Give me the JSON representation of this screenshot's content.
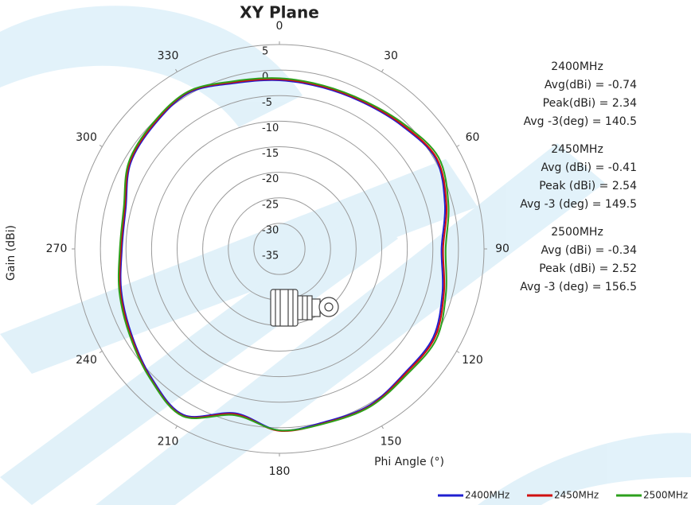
{
  "chart_data": {
    "type": "polar",
    "title": "XY Plane",
    "radial_label": "Gain (dBi)",
    "angle_label": "Phi Angle (°)",
    "theta_direction": "clockwise",
    "theta_zero": "top",
    "rlim": [
      -35,
      5
    ],
    "rticks": [
      5,
      0,
      -5,
      -10,
      -15,
      -20,
      -25,
      -30,
      -35
    ],
    "thetaticks": [
      0,
      30,
      60,
      90,
      120,
      150,
      180,
      210,
      240,
      270,
      300,
      330
    ],
    "theta": [
      0,
      15,
      30,
      45,
      60,
      75,
      90,
      105,
      120,
      135,
      150,
      165,
      180,
      195,
      210,
      225,
      240,
      255,
      270,
      285,
      300,
      315,
      330,
      345
    ],
    "legend": "bottom-right",
    "series": [
      {
        "name": "2400MHz",
        "color": "#1f1fd0",
        "values": [
          -2.0,
          -2.3,
          -2.0,
          -1.0,
          0.3,
          -1.5,
          -3.3,
          -2.0,
          -0.3,
          -0.5,
          0.3,
          0.0,
          0.5,
          -1.7,
          2.5,
          0.5,
          -1.6,
          -3.0,
          -4.2,
          -3.9,
          -1.4,
          -0.5,
          0.3,
          -1.4
        ]
      },
      {
        "name": "2450MHz",
        "color": "#d01010",
        "values": [
          -1.8,
          -2.1,
          -1.8,
          -0.8,
          0.5,
          -1.2,
          -3.0,
          -1.7,
          0.0,
          -0.3,
          0.5,
          0.2,
          0.6,
          -1.5,
          2.7,
          0.7,
          -1.4,
          -2.8,
          -4.0,
          -3.7,
          -1.2,
          -0.3,
          0.5,
          -1.2
        ]
      },
      {
        "name": "2500MHz",
        "color": "#2ca01c",
        "values": [
          -1.6,
          -1.9,
          -1.6,
          -0.5,
          0.9,
          -0.8,
          -2.5,
          -1.3,
          0.4,
          0.0,
          0.6,
          0.3,
          0.5,
          -1.3,
          2.8,
          0.8,
          -1.2,
          -2.6,
          -3.8,
          -3.5,
          -1.0,
          -0.1,
          0.6,
          -1.0
        ]
      }
    ],
    "annotations": [
      [
        "2400MHz",
        "Avg(dBi) = -0.74",
        "Peak(dBi) = 2.34",
        "Avg -3(deg) = 140.5"
      ],
      [
        "2450MHz",
        "Avg (dBi) =  -0.41",
        "Peak (dBi) =  2.54",
        "Avg -3 (deg) =  149.5"
      ],
      [
        "2500MHz",
        "Avg (dBi) =  -0.34",
        "Peak (dBi) =  2.52",
        "Avg -3 (deg) =  156.5"
      ]
    ]
  }
}
